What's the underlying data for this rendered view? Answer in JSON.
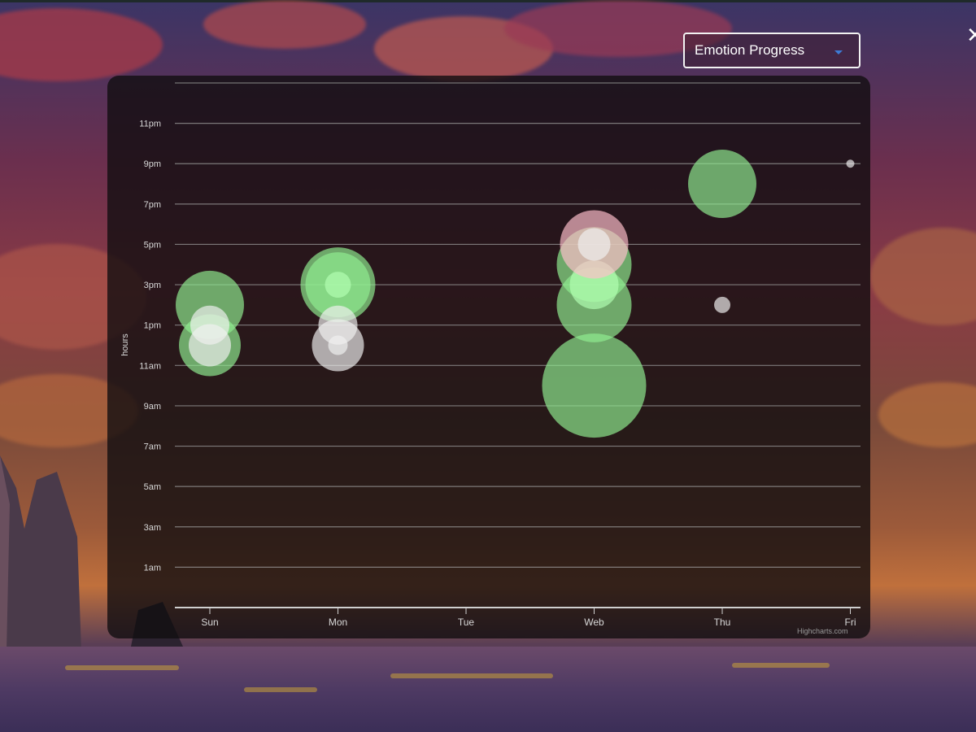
{
  "window": {
    "close_glyph": "✕"
  },
  "dropdown": {
    "selected": "Emotion Progress",
    "icon": "chevron-down-icon"
  },
  "credit": "Highcharts.com",
  "chart_data": {
    "type": "bubble",
    "ylabel": "hours",
    "categories": [
      "Sun",
      "Mon",
      "Tue",
      "Web",
      "Thu",
      "Fri"
    ],
    "y_ticks": [
      {
        "value": 1,
        "label": "1am"
      },
      {
        "value": 3,
        "label": "3am"
      },
      {
        "value": 5,
        "label": "5am"
      },
      {
        "value": 7,
        "label": "7am"
      },
      {
        "value": 9,
        "label": "9am"
      },
      {
        "value": 11,
        "label": "11am"
      },
      {
        "value": 13,
        "label": "1pm"
      },
      {
        "value": 15,
        "label": "3pm"
      },
      {
        "value": 17,
        "label": "5pm"
      },
      {
        "value": 19,
        "label": "7pm"
      },
      {
        "value": 21,
        "label": "9pm"
      },
      {
        "value": 23,
        "label": "11pm"
      }
    ],
    "ylim": [
      -1,
      25
    ],
    "grid": true,
    "colors": {
      "positive": "#90ee90",
      "neutral": "#f0f0f0",
      "pink": "#ffc0cb",
      "positive_core": "#b2ffb2"
    },
    "points": [
      {
        "x": 0,
        "y": 14,
        "z": 42,
        "color": "positive"
      },
      {
        "x": 0,
        "y": 12,
        "z": 38,
        "color": "positive"
      },
      {
        "x": 0,
        "y": 13,
        "z": 24,
        "color": "neutral"
      },
      {
        "x": 0,
        "y": 12,
        "z": 26,
        "color": "neutral"
      },
      {
        "x": 1,
        "y": 15,
        "z": 46,
        "color": "positive"
      },
      {
        "x": 1,
        "y": 15,
        "z": 40,
        "color": "positive"
      },
      {
        "x": 1,
        "y": 15,
        "z": 16,
        "color": "positive_core"
      },
      {
        "x": 1,
        "y": 13,
        "z": 24,
        "color": "neutral"
      },
      {
        "x": 1,
        "y": 12,
        "z": 32,
        "color": "neutral"
      },
      {
        "x": 1,
        "y": 12,
        "z": 12,
        "color": "neutral"
      },
      {
        "x": 3,
        "y": 10,
        "z": 64,
        "color": "positive"
      },
      {
        "x": 3,
        "y": 14,
        "z": 46,
        "color": "positive"
      },
      {
        "x": 3,
        "y": 16,
        "z": 46,
        "color": "positive"
      },
      {
        "x": 3,
        "y": 15,
        "z": 30,
        "color": "positive_core"
      },
      {
        "x": 3,
        "y": 17,
        "z": 42,
        "color": "pink"
      },
      {
        "x": 3,
        "y": 17,
        "z": 20,
        "color": "neutral"
      },
      {
        "x": 4,
        "y": 20,
        "z": 42,
        "color": "positive"
      },
      {
        "x": 4,
        "y": 14,
        "z": 10,
        "color": "neutral"
      },
      {
        "x": 5,
        "y": 21,
        "z": 5,
        "color": "neutral"
      }
    ]
  }
}
